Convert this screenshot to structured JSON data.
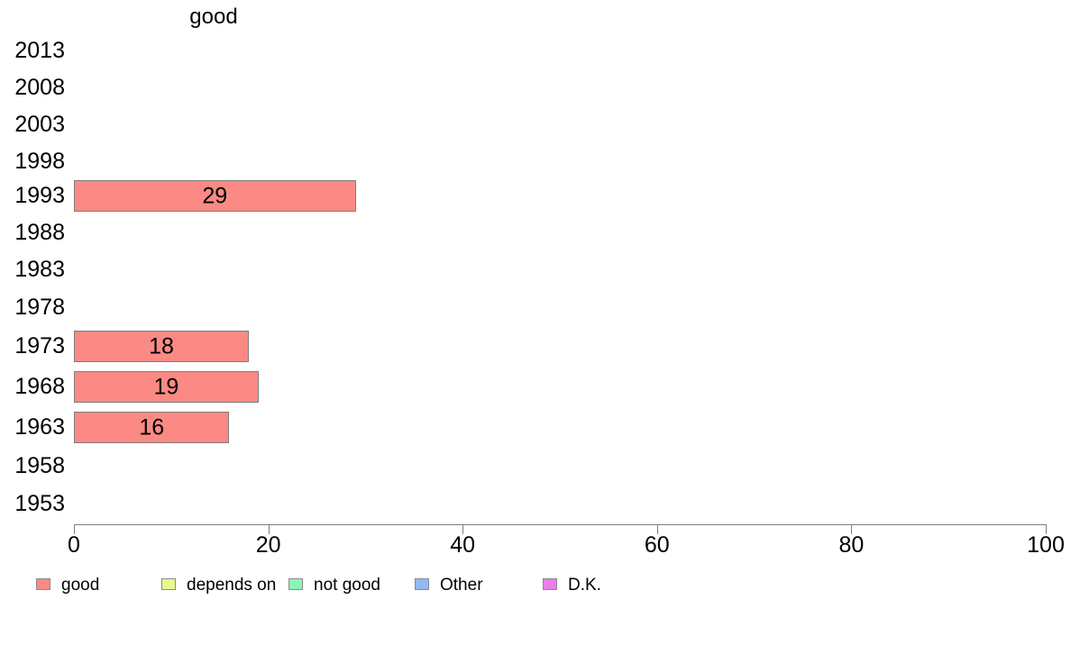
{
  "chart_data": {
    "type": "bar",
    "orientation": "horizontal",
    "title": "good",
    "categories": [
      "2013",
      "2008",
      "2003",
      "1998",
      "1993",
      "1988",
      "1983",
      "1978",
      "1973",
      "1968",
      "1963",
      "1958",
      "1953"
    ],
    "values": [
      null,
      null,
      null,
      null,
      29,
      null,
      null,
      null,
      18,
      19,
      16,
      null,
      null
    ],
    "bar_labels": [
      "",
      "",
      "",
      "",
      "29",
      "",
      "",
      "",
      "18",
      "19",
      "16",
      "",
      ""
    ],
    "xlim": [
      0,
      100
    ],
    "x_ticks": [
      "0",
      "20",
      "40",
      "60",
      "80",
      "100"
    ],
    "x_tick_values": [
      0,
      20,
      40,
      60,
      80,
      100
    ],
    "grid": "off",
    "legend_position": "bottom",
    "colors": {
      "bar_fill": "#fb8a84",
      "bar_border": "#7e7e7e",
      "axis": "#7f7f7f",
      "text": "#000000"
    },
    "legend": [
      {
        "label": "good",
        "color": "#fb8a84"
      },
      {
        "label": "depends on",
        "color": "#e6f88e"
      },
      {
        "label": "not good",
        "color": "#8df5b4"
      },
      {
        "label": "Other",
        "color": "#92baf3"
      },
      {
        "label": "D.K.",
        "color": "#ec7eec"
      }
    ]
  }
}
